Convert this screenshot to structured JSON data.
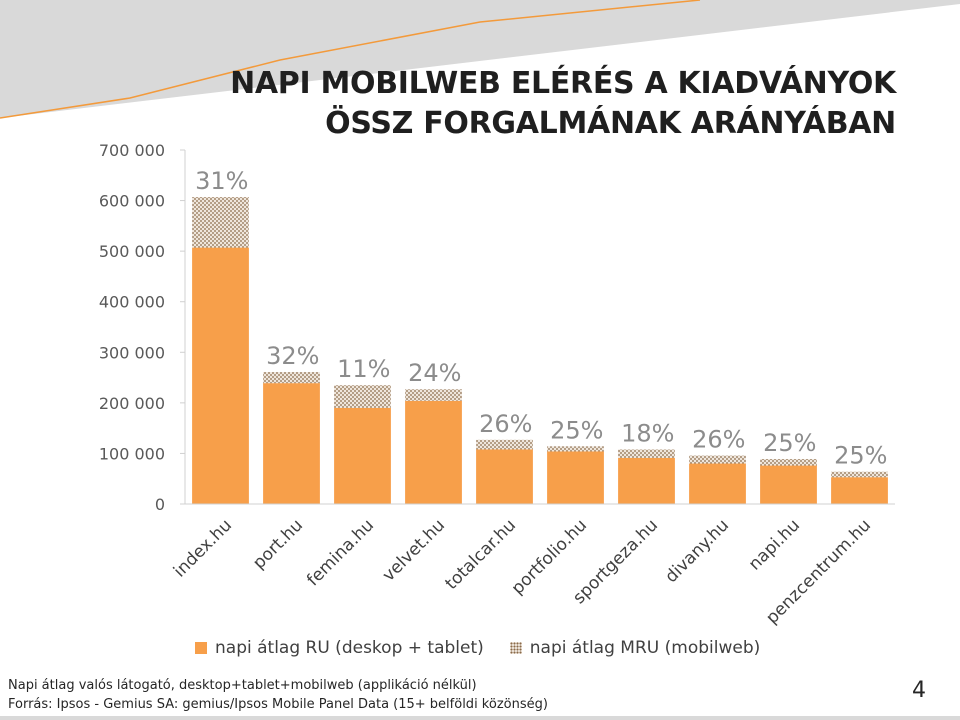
{
  "title_line1": "NAPI MOBILWEB ELÉRÉS A KIADVÁNYOK",
  "title_line2": "ÖSSZ FORGALMÁNAK ARÁNYÁBAN",
  "colors": {
    "ru": "#f79f4a",
    "mru_base": "#efe6dc",
    "mru_dots": "#8a6a4a",
    "decor": "#d9d9d9",
    "accent": "#f39a3b"
  },
  "chart_data": {
    "type": "bar",
    "stacked": true,
    "categories": [
      "index.hu",
      "port.hu",
      "femina.hu",
      "velvet.hu",
      "totalcar.hu",
      "portfolio.hu",
      "sportgeza.hu",
      "divany.hu",
      "napi.hu",
      "penzcentrum.hu"
    ],
    "series": [
      {
        "name": "napi átlag RU (deskop + tablet)",
        "values": [
          507000,
          239000,
          190000,
          204000,
          108000,
          104000,
          91000,
          80000,
          76000,
          53000
        ]
      },
      {
        "name": "napi átlag MRU (mobilweb)",
        "values": [
          100000,
          22000,
          45000,
          23000,
          19000,
          10000,
          17000,
          16000,
          13000,
          11000
        ]
      }
    ],
    "bar_labels": [
      "31%",
      "32%",
      "11%",
      "24%",
      "26%",
      "25%",
      "18%",
      "26%",
      "25%",
      "25%"
    ],
    "ylim": [
      0,
      700000
    ],
    "yticks": [
      "0",
      "100 000",
      "200 000",
      "300 000",
      "400 000",
      "500 000",
      "600 000",
      "700 000"
    ],
    "grid": false,
    "legend_position": "bottom"
  },
  "footnote_line1": "Napi átlag valós látogató, desktop+tablet+mobilweb (applikáció nélkül)",
  "footnote_line2": "Forrás: Ipsos - Gemius SA: gemius/Ipsos Mobile Panel Data (15+ belföldi közönség)",
  "page_number": "4"
}
